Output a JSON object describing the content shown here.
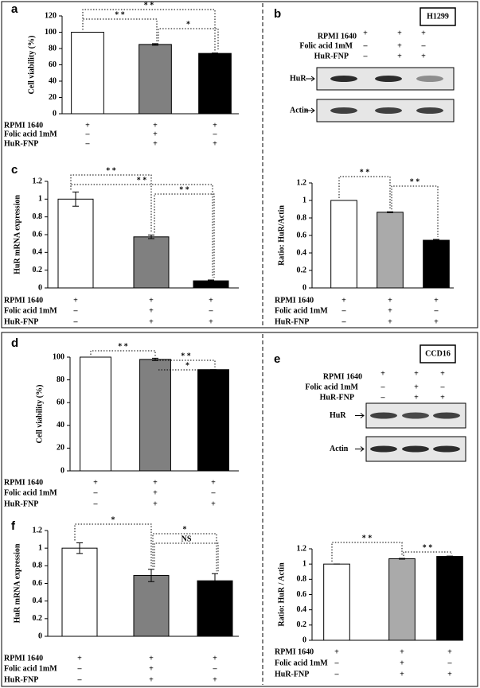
{
  "chart_data": [
    {
      "type": "bar",
      "panel": "a",
      "ylabel": "Cell viability (%)",
      "values": [
        100,
        85,
        74
      ],
      "errors": [
        0,
        1,
        0.5
      ],
      "colors": [
        "#ffffff",
        "#808080",
        "#000000"
      ],
      "ylim": [
        0,
        120
      ],
      "yticks": [
        0,
        20,
        40,
        60,
        80,
        100,
        120
      ],
      "significance": [
        {
          "from": 0,
          "to": 2,
          "label": "* *"
        },
        {
          "from": 0,
          "to": 1,
          "label": "* *"
        },
        {
          "from": 1,
          "to": 2,
          "label": "*"
        }
      ],
      "conditions": [
        {
          "label": "RPMI 1640",
          "signs": [
            "+",
            "+",
            "+"
          ]
        },
        {
          "label": "Folic acid 1mM",
          "signs": [
            "–",
            "+",
            "–"
          ]
        },
        {
          "label": "HuR-FNP",
          "signs": [
            "–",
            "+",
            "+"
          ]
        }
      ]
    },
    {
      "type": "bar",
      "panel": "c",
      "ylabel": "HuR  mRNA expression",
      "values": [
        1.0,
        0.575,
        0.08
      ],
      "errors": [
        0.08,
        0.02,
        0.01
      ],
      "colors": [
        "#ffffff",
        "#808080",
        "#000000"
      ],
      "ylim": [
        0,
        1.2
      ],
      "yticks": [
        0,
        0.2,
        0.4,
        0.6,
        0.8,
        1,
        1.2
      ],
      "significance": [
        {
          "from": 0,
          "to": 1,
          "label": "* *"
        },
        {
          "from": 0,
          "to": 2,
          "label": "* *"
        },
        {
          "from": 1,
          "to": 2,
          "label": "* *"
        }
      ],
      "conditions": [
        {
          "label": "RPMI 1640",
          "signs": [
            "+",
            "+",
            "+"
          ]
        },
        {
          "label": "Folic acid 1mM",
          "signs": [
            "–",
            "+",
            "–"
          ]
        },
        {
          "label": "HuR-FNP",
          "signs": [
            "–",
            "+",
            "+"
          ]
        }
      ]
    },
    {
      "type": "bar",
      "ylabel": "Ratio: HuR/Actin",
      "values": [
        1.0,
        0.865,
        0.545
      ],
      "errors": [
        0,
        0.005,
        0.01
      ],
      "colors": [
        "#ffffff",
        "#aaaaaa",
        "#000000"
      ],
      "ylim": [
        0,
        1.2
      ],
      "yticks": [
        0,
        0.2,
        0.4,
        0.6,
        0.8,
        1,
        1.2
      ],
      "significance": [
        {
          "from": 0,
          "to": 1,
          "label": "* *"
        },
        {
          "from": 1,
          "to": 2,
          "label": "* *"
        }
      ],
      "conditions": [
        {
          "label": "RPMI 1640",
          "signs": [
            "+",
            "+",
            "+"
          ]
        },
        {
          "label": "Folic acid 1mM",
          "signs": [
            "–",
            "+",
            "–"
          ]
        },
        {
          "label": "HuR-FNP",
          "signs": [
            "–",
            "+",
            "+"
          ]
        }
      ]
    },
    {
      "type": "bar",
      "panel": "d",
      "ylabel": "Cell viability (%)",
      "values": [
        100,
        98,
        89
      ],
      "errors": [
        0,
        1,
        0
      ],
      "colors": [
        "#ffffff",
        "#808080",
        "#000000"
      ],
      "ylim": [
        0,
        100
      ],
      "yticks": [
        0,
        20,
        40,
        60,
        80,
        100
      ],
      "significance": [
        {
          "from": 0,
          "to": 1,
          "label": "* *"
        },
        {
          "from": 1,
          "to": 2,
          "label": "* *"
        },
        {
          "from": 1,
          "to": 2,
          "label": "*"
        }
      ],
      "conditions": [
        {
          "label": "RPMI 1640",
          "signs": [
            "+",
            "+",
            "+"
          ]
        },
        {
          "label": "Folic acid 1mM",
          "signs": [
            "–",
            "+",
            "–"
          ]
        },
        {
          "label": "HuR-FNP",
          "signs": [
            "–",
            "+",
            "+"
          ]
        }
      ]
    },
    {
      "type": "bar",
      "panel": "f",
      "ylabel": "HuR  mRNA expression",
      "values": [
        1.0,
        0.69,
        0.63
      ],
      "errors": [
        0.06,
        0.07,
        0.08
      ],
      "colors": [
        "#ffffff",
        "#808080",
        "#000000"
      ],
      "ylim": [
        0,
        1.2
      ],
      "yticks": [
        0,
        0.2,
        0.4,
        0.6,
        0.8,
        1,
        1.2
      ],
      "significance": [
        {
          "from": 0,
          "to": 1,
          "label": "*"
        },
        {
          "from": 1,
          "to": 2,
          "label": "*"
        },
        {
          "from": 1,
          "to": 2,
          "label": "NS"
        }
      ],
      "conditions": [
        {
          "label": "RPMI 1640",
          "signs": [
            "+",
            "+",
            "+"
          ]
        },
        {
          "label": "Folic acid 1mM",
          "signs": [
            "–",
            "+",
            "–"
          ]
        },
        {
          "label": "HuR-FNP",
          "signs": [
            "–",
            "+",
            "+"
          ]
        }
      ]
    },
    {
      "type": "bar",
      "ylabel": "Ratio: HuR / Actin",
      "values": [
        1.0,
        1.07,
        1.1
      ],
      "errors": [
        0,
        0.005,
        0.005
      ],
      "colors": [
        "#ffffff",
        "#aaaaaa",
        "#000000"
      ],
      "ylim": [
        0,
        1.2
      ],
      "yticks": [
        0,
        0.2,
        0.4,
        0.6,
        0.8,
        1,
        1.2
      ],
      "significance": [
        {
          "from": 0,
          "to": 1,
          "label": "* *"
        },
        {
          "from": 1,
          "to": 2,
          "label": "* *"
        }
      ],
      "conditions": [
        {
          "label": "RPMI 1640",
          "signs": [
            "+",
            "+",
            "+"
          ]
        },
        {
          "label": "Folic acid 1mM",
          "signs": [
            "–",
            "+",
            "–"
          ]
        },
        {
          "label": "HuR-FNP",
          "signs": [
            "–",
            "+",
            "+"
          ]
        }
      ]
    }
  ],
  "blots": [
    {
      "panel": "b",
      "cell_line": "H1299",
      "bands": [
        "HuR",
        "Actin"
      ],
      "conditions": [
        {
          "label": "RPMI 1640",
          "signs": [
            "+",
            "+",
            "+"
          ]
        },
        {
          "label": "Folic acid 1mM",
          "signs": [
            "–",
            "+",
            "–"
          ]
        },
        {
          "label": "HuR-FNP",
          "signs": [
            "–",
            "+",
            "+"
          ]
        }
      ]
    },
    {
      "panel": "e",
      "cell_line": "CCD16",
      "bands": [
        "HuR",
        "Actin"
      ],
      "conditions": [
        {
          "label": "RPMI 1640",
          "signs": [
            "+",
            "+",
            "+"
          ]
        },
        {
          "label": "Folic acid 1mM",
          "signs": [
            "–",
            "+",
            "–"
          ]
        },
        {
          "label": "HuR-FNP",
          "signs": [
            "–",
            "+",
            "+"
          ]
        }
      ]
    }
  ]
}
